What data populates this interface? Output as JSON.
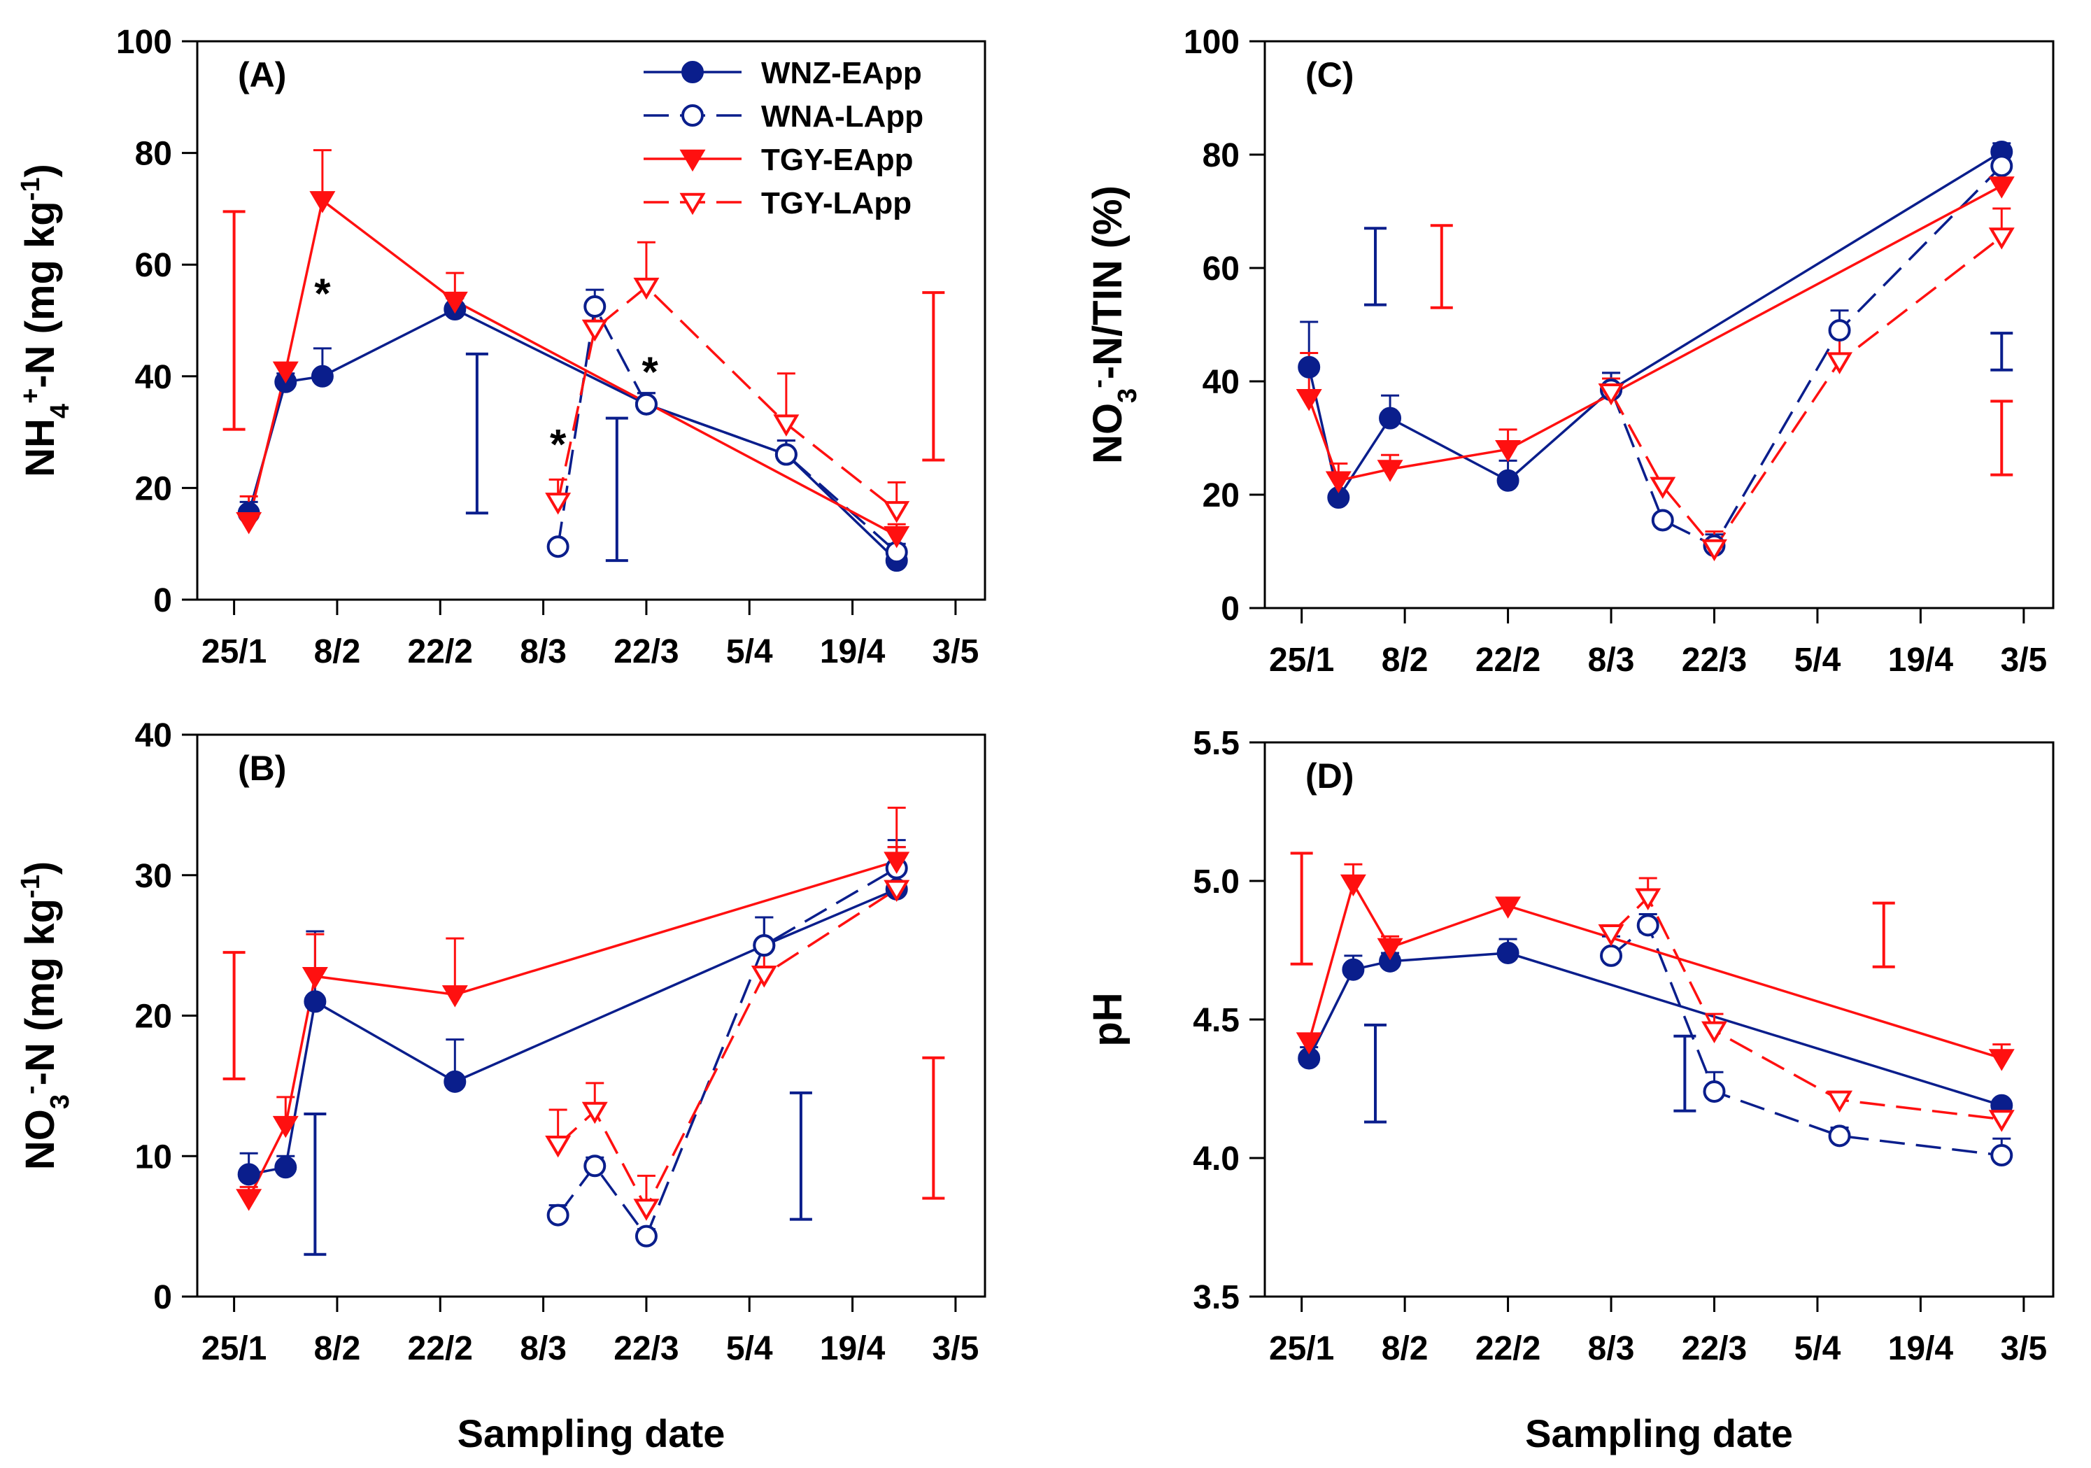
{
  "x_axis": {
    "ticks": [
      {
        "label": "25/1",
        "day": 0
      },
      {
        "label": "8/2",
        "day": 14
      },
      {
        "label": "22/2",
        "day": 28
      },
      {
        "label": "8/3",
        "day": 42
      },
      {
        "label": "22/3",
        "day": 56
      },
      {
        "label": "5/4",
        "day": 70
      },
      {
        "label": "19/4",
        "day": 84
      },
      {
        "label": "3/5",
        "day": 98
      }
    ],
    "range": [
      -5,
      102
    ],
    "xlabel": "Sampling date"
  },
  "legend": {
    "items": [
      {
        "label": "WNZ-EApp",
        "color": "#0a1e8c",
        "marker": "circle",
        "filled": true,
        "dash": false
      },
      {
        "label": "WNA-LApp",
        "color": "#0a1e8c",
        "marker": "circle",
        "filled": false,
        "dash": true
      },
      {
        "label": "TGY-EApp",
        "color": "#ff1010",
        "marker": "triangle-down",
        "filled": true,
        "dash": false
      },
      {
        "label": "TGY-LApp",
        "color": "#ff1010",
        "marker": "triangle-down",
        "filled": false,
        "dash": true
      }
    ]
  },
  "chart_data": [
    {
      "id": "A",
      "type": "line",
      "panel_label": "(A)",
      "ylabel": "NH4+-N (mg kg-1)",
      "ylim": [
        0,
        100
      ],
      "yticks": [
        0,
        20,
        40,
        60,
        80,
        100
      ],
      "series": [
        {
          "name": "WNZ-EApp",
          "points": [
            [
              2,
              15.5,
              2
            ],
            [
              7,
              39,
              1.5
            ],
            [
              12,
              40,
              5
            ],
            [
              30,
              52,
              2
            ],
            [
              56,
              35,
              2
            ],
            [
              75,
              26,
              2.5
            ],
            [
              90,
              7,
              1
            ]
          ]
        },
        {
          "name": "WNA-LApp",
          "points": [
            [
              44,
              9.5,
              1
            ],
            [
              49,
              52.5,
              3
            ],
            [
              56,
              35,
              2
            ],
            [
              75,
              26,
              2.5
            ],
            [
              90,
              8.5,
              1.5
            ]
          ]
        },
        {
          "name": "TGY-EApp",
          "points": [
            [
              2,
              14,
              4.5
            ],
            [
              7,
              41,
              1
            ],
            [
              12,
              71.5,
              9
            ],
            [
              30,
              53.5,
              5
            ],
            [
              90,
              11.5,
              2
            ]
          ]
        },
        {
          "name": "TGY-LApp",
          "points": [
            [
              44,
              17.5,
              4
            ],
            [
              49,
              48.5,
              5
            ],
            [
              56,
              56,
              8
            ],
            [
              75,
              31.5,
              9
            ],
            [
              90,
              16,
              5
            ]
          ]
        }
      ],
      "range_bars": [
        {
          "x": 0,
          "low": 30.5,
          "high": 69.5,
          "color": "#ff1010"
        },
        {
          "x": 33,
          "low": 15.5,
          "high": 44,
          "color": "#0a1e8c"
        },
        {
          "x": 52,
          "low": 7,
          "high": 32.5,
          "color": "#0a1e8c"
        },
        {
          "x": 95,
          "low": 25,
          "high": 55,
          "color": "#ff1010"
        }
      ],
      "annotations": [
        {
          "text": "*",
          "x": 12,
          "y": 56
        },
        {
          "text": "*",
          "x": 44,
          "y": 29
        },
        {
          "text": "*",
          "x": 56.5,
          "y": 42
        }
      ],
      "show_legend": true,
      "show_xlabel": false
    },
    {
      "id": "B",
      "type": "line",
      "panel_label": "(B)",
      "ylabel": "NO3--N (mg kg-1)",
      "ylim": [
        0,
        40
      ],
      "yticks": [
        0,
        10,
        20,
        30,
        40
      ],
      "series": [
        {
          "name": "WNZ-EApp",
          "points": [
            [
              2,
              8.7,
              1.5
            ],
            [
              7,
              9.2,
              0.8
            ],
            [
              11,
              21,
              5
            ],
            [
              30,
              15.3,
              3
            ],
            [
              72,
              25,
              2
            ],
            [
              90,
              29,
              3
            ]
          ]
        },
        {
          "name": "WNA-LApp",
          "points": [
            [
              44,
              5.8,
              0.7
            ],
            [
              49,
              9.3,
              0.6
            ],
            [
              56,
              4.3,
              0.5
            ],
            [
              72,
              25,
              2
            ],
            [
              90,
              30.5,
              2
            ]
          ]
        },
        {
          "name": "TGY-EApp",
          "points": [
            [
              2,
              7,
              0.8
            ],
            [
              7,
              12.2,
              2
            ],
            [
              11,
              22.8,
              3
            ],
            [
              30,
              21.5,
              4
            ],
            [
              90,
              31,
              3.8
            ]
          ]
        },
        {
          "name": "TGY-LApp",
          "points": [
            [
              44,
              10.8,
              2.5
            ],
            [
              49,
              13.2,
              2
            ],
            [
              56,
              6.3,
              2.3
            ],
            [
              72,
              22.9,
              2.5
            ],
            [
              90,
              29,
              3
            ]
          ]
        }
      ],
      "range_bars": [
        {
          "x": 0,
          "low": 15.5,
          "high": 24.5,
          "color": "#ff1010"
        },
        {
          "x": 11,
          "low": 3,
          "high": 13,
          "color": "#0a1e8c"
        },
        {
          "x": 77,
          "low": 5.5,
          "high": 14.5,
          "color": "#0a1e8c"
        },
        {
          "x": 95,
          "low": 7,
          "high": 17,
          "color": "#ff1010"
        }
      ],
      "annotations": [],
      "show_legend": false,
      "show_xlabel": true
    },
    {
      "id": "C",
      "type": "line",
      "panel_label": "(C)",
      "ylabel": "NO3--N/TIN (%)",
      "ylim": [
        0,
        100
      ],
      "yticks": [
        0,
        20,
        40,
        60,
        80,
        100
      ],
      "series": [
        {
          "name": "WNZ-EApp",
          "points": [
            [
              1,
              42.5,
              8
            ],
            [
              5,
              19.5,
              1
            ],
            [
              12,
              33.5,
              4
            ],
            [
              28,
              22.5,
              3.5
            ],
            [
              42,
              38.5,
              3
            ],
            [
              95,
              80.5,
              1.5
            ]
          ]
        },
        {
          "name": "WNA-LApp",
          "points": [
            [
              42,
              38.5,
              3
            ],
            [
              49,
              15.5,
              1
            ],
            [
              56,
              11,
              2
            ],
            [
              73,
              49,
              3.5
            ],
            [
              95,
              78,
              2
            ]
          ]
        },
        {
          "name": "TGY-EApp",
          "points": [
            [
              1,
              37,
              8
            ],
            [
              5,
              22.5,
              3
            ],
            [
              12,
              24.5,
              2.5
            ],
            [
              28,
              28,
              3.5
            ],
            [
              95,
              74.5,
              3.5
            ]
          ]
        },
        {
          "name": "TGY-LApp",
          "points": [
            [
              42,
              38,
              2.5
            ],
            [
              49,
              21.5,
              1
            ],
            [
              56,
              10.5,
              3
            ],
            [
              73,
              43.5,
              6
            ],
            [
              95,
              65.5,
              5
            ]
          ]
        }
      ],
      "range_bars": [
        {
          "x": 10,
          "low": 53.5,
          "high": 67,
          "color": "#0a1e8c"
        },
        {
          "x": 19,
          "low": 53,
          "high": 67.5,
          "color": "#ff1010"
        },
        {
          "x": 95,
          "low": 42,
          "high": 48.5,
          "color": "#0a1e8c"
        },
        {
          "x": 95,
          "low": 23.5,
          "high": 36.5,
          "color": "#ff1010"
        }
      ],
      "annotations": [],
      "show_legend": false,
      "show_xlabel": false
    },
    {
      "id": "D",
      "type": "line",
      "panel_label": "(D)",
      "ylabel": "pH",
      "ylim": [
        3.5,
        5.5
      ],
      "yticks": [
        3.5,
        4.0,
        4.5,
        5.0,
        5.5
      ],
      "series": [
        {
          "name": "WNZ-EApp",
          "points": [
            [
              1,
              4.36,
              0.04
            ],
            [
              7,
              4.68,
              0.05
            ],
            [
              12,
              4.71,
              0.03
            ],
            [
              28,
              4.74,
              0.05
            ],
            [
              95,
              4.19,
              0.02
            ]
          ]
        },
        {
          "name": "WNA-LApp",
          "points": [
            [
              42,
              4.73,
              0.07
            ],
            [
              47,
              4.84,
              0.04
            ],
            [
              56,
              4.24,
              0.07
            ],
            [
              73,
              4.08,
              0.03
            ],
            [
              95,
              4.01,
              0.06
            ]
          ]
        },
        {
          "name": "TGY-EApp",
          "points": [
            [
              1,
              4.42,
              0.02
            ],
            [
              7,
              4.99,
              0.07
            ],
            [
              12,
              4.76,
              0.04
            ],
            [
              28,
              4.91,
              0.02
            ],
            [
              95,
              4.36,
              0.05
            ]
          ]
        },
        {
          "name": "TGY-LApp",
          "points": [
            [
              42,
              4.81,
              0.03
            ],
            [
              47,
              4.94,
              0.07
            ],
            [
              56,
              4.46,
              0.06
            ],
            [
              73,
              4.21,
              0.02
            ],
            [
              95,
              4.14,
              0.02
            ]
          ]
        }
      ],
      "range_bars": [
        {
          "x": 0,
          "low": 4.7,
          "high": 5.1,
          "color": "#ff1010"
        },
        {
          "x": 10,
          "low": 4.13,
          "high": 4.48,
          "color": "#0a1e8c"
        },
        {
          "x": 52,
          "low": 4.17,
          "high": 4.44,
          "color": "#0a1e8c"
        },
        {
          "x": 79,
          "low": 4.69,
          "high": 4.92,
          "color": "#ff1010"
        }
      ],
      "annotations": [],
      "show_legend": false,
      "show_xlabel": true
    }
  ]
}
